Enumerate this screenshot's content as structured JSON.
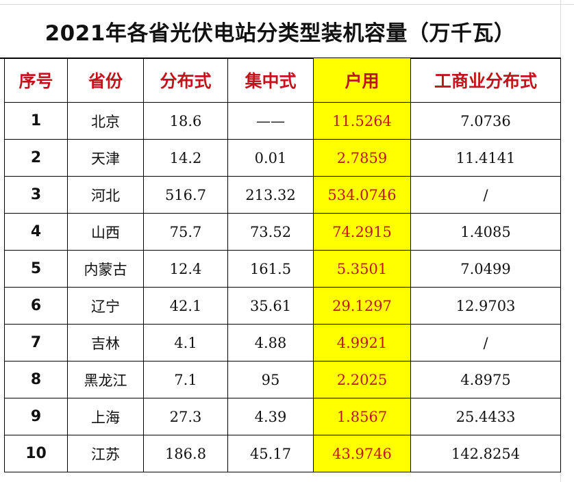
{
  "title": "2021年各省光伏电站分类型装机容量（万千瓦）",
  "colors": {
    "header_text": "#c0141b",
    "highlight_fill": "#ffff00",
    "highlight_text": "#c0141b",
    "body_text": "#111111",
    "grid_lines": "#000000"
  },
  "table": {
    "headers": [
      "序号",
      "省份",
      "分布式",
      "集中式",
      "户用",
      "工商业分布式"
    ],
    "rows": [
      [
        "1",
        "北京",
        "18.6",
        "——",
        "11.5264",
        "7.0736"
      ],
      [
        "2",
        "天津",
        "14.2",
        "0.01",
        "2.7859",
        "11.4141"
      ],
      [
        "3",
        "河北",
        "516.7",
        "213.32",
        "534.0746",
        "/"
      ],
      [
        "4",
        "山西",
        "75.7",
        "73.52",
        "74.2915",
        "1.4085"
      ],
      [
        "5",
        "内蒙古",
        "12.4",
        "161.5",
        "5.3501",
        "7.0499"
      ],
      [
        "6",
        "辽宁",
        "42.1",
        "35.61",
        "29.1297",
        "12.9703"
      ],
      [
        "7",
        "吉林",
        "4.1",
        "4.88",
        "4.9921",
        "/"
      ],
      [
        "8",
        "黑龙江",
        "7.1",
        "95",
        "2.2025",
        "4.8975"
      ],
      [
        "9",
        "上海",
        "27.3",
        "4.39",
        "1.8567",
        "25.4433"
      ],
      [
        "10",
        "江苏",
        "186.8",
        "45.17",
        "43.9746",
        "142.8254"
      ]
    ]
  }
}
